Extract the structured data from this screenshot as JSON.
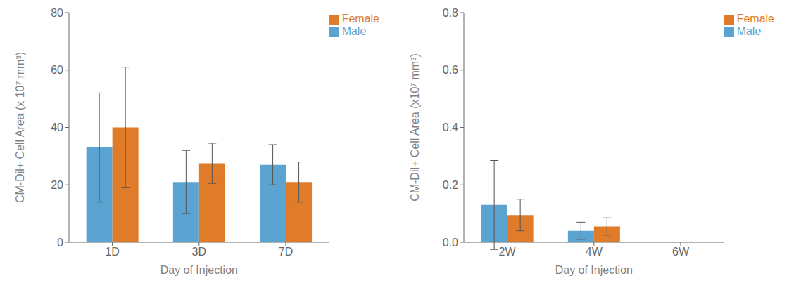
{
  "chart_data": [
    {
      "type": "bar",
      "categories": [
        "1D",
        "3D",
        "7D"
      ],
      "series": [
        {
          "name": "Male",
          "color": "#5BA3D0",
          "values": [
            33,
            21,
            27
          ],
          "errors": [
            19,
            11,
            7
          ]
        },
        {
          "name": "Female",
          "color": "#E07B2A",
          "values": [
            40,
            27.5,
            21
          ],
          "errors": [
            21,
            7,
            7
          ]
        }
      ],
      "ylabel": "CM-Dil+ Cell Area (x 10⁷ mm³)",
      "xlabel": "Day of Injection",
      "ylim": [
        0,
        80
      ],
      "yticks": [
        0,
        20,
        40,
        60,
        80
      ],
      "grid": false,
      "legend": "upper right"
    },
    {
      "type": "bar",
      "categories": [
        "2W",
        "4W",
        "6W"
      ],
      "series": [
        {
          "name": "Male",
          "color": "#5BA3D0",
          "values": [
            0.13,
            0.04,
            0.0
          ],
          "errors": [
            0.155,
            0.03,
            0.0
          ]
        },
        {
          "name": "Female",
          "color": "#E07B2A",
          "values": [
            0.095,
            0.055,
            0.0
          ],
          "errors": [
            0.055,
            0.03,
            0.0
          ]
        }
      ],
      "ylabel": "CM-Dil+ Cell Area (x10⁷ mm³)",
      "xlabel": "Day of Injection",
      "ylim": [
        0,
        0.8
      ],
      "yticks": [
        {
          "value": 0,
          "label": "0.0"
        },
        0.2,
        0.4,
        0.6,
        0.8
      ],
      "grid": false,
      "legend": "upper right"
    }
  ]
}
